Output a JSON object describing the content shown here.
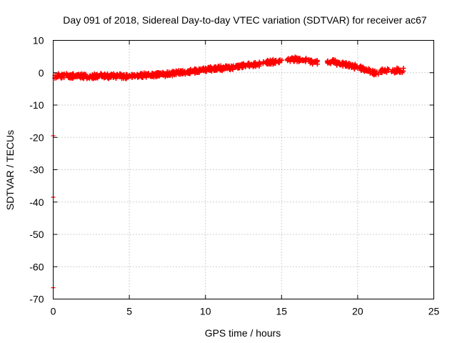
{
  "chart_data": {
    "type": "scatter",
    "title": "Day 091 of 2018, Sidereal Day-to-day VTEC variation (SDTVAR) for receiver ac67",
    "xlabel": "GPS time / hours",
    "ylabel": "SDTVAR / TECUs",
    "xlim": [
      0,
      25
    ],
    "ylim": [
      -70,
      10
    ],
    "x_ticks": [
      0,
      5,
      10,
      15,
      20,
      25
    ],
    "y_ticks": [
      10,
      0,
      -10,
      -20,
      -30,
      -40,
      -50,
      -60,
      -70
    ],
    "grid": true,
    "marker": "plus",
    "series_color": "#ff0000",
    "series": [
      {
        "name": "SDTVAR",
        "x": [
          0.3,
          0.5,
          0.7,
          0.9,
          1.1,
          1.3,
          1.5,
          1.8,
          2.0,
          2.2,
          2.4,
          2.6,
          2.8,
          3.0,
          3.2,
          3.4,
          3.6,
          3.8,
          4.0,
          4.2,
          4.4,
          4.6,
          4.8,
          5.0,
          5.2,
          5.4,
          5.6,
          5.8,
          6.0,
          6.2,
          6.4,
          6.6,
          6.8,
          7.0,
          7.2,
          7.4,
          7.6,
          7.8,
          8.0,
          8.2,
          8.4,
          8.6,
          8.8,
          9.0,
          9.2,
          9.4,
          9.6,
          9.8,
          10.0,
          10.2,
          10.4,
          10.6,
          10.8,
          11.0,
          11.2,
          11.4,
          11.6,
          11.8,
          12.0,
          12.2,
          12.4,
          12.6,
          12.8,
          13.0,
          13.2,
          13.4,
          14.0,
          14.2,
          14.4,
          14.6,
          14.8,
          15.6,
          15.8,
          16.0,
          16.2,
          16.4,
          17.0,
          17.2,
          18.2,
          18.4,
          18.6,
          18.8,
          19.2,
          19.4,
          19.6,
          19.8,
          20.0,
          20.2,
          20.4,
          20.6,
          21.0,
          21.2,
          21.6,
          21.8,
          22.4,
          22.6,
          22.8
        ],
        "y": [
          -1.2,
          -0.9,
          -1.0,
          -0.8,
          -1.1,
          -1.0,
          -0.8,
          -1.2,
          -1.0,
          -1.3,
          -1.1,
          -1.2,
          -1.0,
          -1.1,
          -0.9,
          -1.0,
          -1.2,
          -1.0,
          -0.9,
          -1.1,
          -1.0,
          -1.2,
          -1.1,
          -1.0,
          -0.9,
          -1.1,
          -1.0,
          -0.8,
          -0.9,
          -0.7,
          -0.8,
          -0.6,
          -0.7,
          -0.5,
          -0.6,
          -0.4,
          -0.3,
          -0.2,
          -0.1,
          0.0,
          0.1,
          0.2,
          0.1,
          0.3,
          0.4,
          0.6,
          0.7,
          0.9,
          1.0,
          1.0,
          1.2,
          1.3,
          1.4,
          1.2,
          1.5,
          1.6,
          1.4,
          1.7,
          1.8,
          1.9,
          2.0,
          2.2,
          2.3,
          2.4,
          2.5,
          2.6,
          3.0,
          3.3,
          3.6,
          3.1,
          3.4,
          4.1,
          3.9,
          4.2,
          4.0,
          3.8,
          3.5,
          3.3,
          3.2,
          3.5,
          3.0,
          2.8,
          2.6,
          2.3,
          2.0,
          1.8,
          1.5,
          1.3,
          1.0,
          0.8,
          0.2,
          -0.3,
          0.4,
          0.6,
          0.8,
          0.5,
          0.7
        ]
      }
    ],
    "outliers": [
      {
        "x": 0,
        "y": -19.5
      },
      {
        "x": 0,
        "y": -38.5
      },
      {
        "x": 0,
        "y": -66.5
      }
    ]
  }
}
